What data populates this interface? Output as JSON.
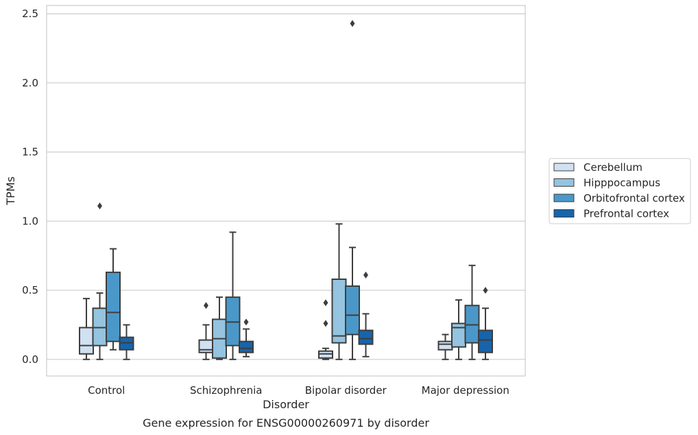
{
  "chart_data": {
    "type": "box",
    "title": "",
    "caption": "Gene expression for ENSG00000260971 by disorder",
    "xlabel": "Disorder",
    "ylabel": "TPMs",
    "ylim": [
      -0.12,
      2.56
    ],
    "yticks": [
      0.0,
      0.5,
      1.0,
      1.5,
      2.0,
      2.5
    ],
    "ytick_labels": [
      "0.0",
      "0.5",
      "1.0",
      "1.5",
      "2.0",
      "2.5"
    ],
    "grid": "horizontal",
    "legend_position": "right",
    "categories": [
      "Control",
      "Schizophrenia",
      "Bipolar disorder",
      "Major depression"
    ],
    "series": [
      {
        "name": "Cerebellum",
        "color": "#d0e1f2",
        "boxes": [
          {
            "whisker_low": 0.0,
            "q1": 0.04,
            "median": 0.1,
            "q3": 0.23,
            "whisker_high": 0.44,
            "outliers": []
          },
          {
            "whisker_low": 0.0,
            "q1": 0.05,
            "median": 0.07,
            "q3": 0.14,
            "whisker_high": 0.25,
            "outliers": [
              0.39
            ]
          },
          {
            "whisker_low": 0.0,
            "q1": 0.01,
            "median": 0.04,
            "q3": 0.06,
            "whisker_high": 0.08,
            "outliers": [
              0.26,
              0.41
            ]
          },
          {
            "whisker_low": 0.0,
            "q1": 0.07,
            "median": 0.11,
            "q3": 0.13,
            "whisker_high": 0.18,
            "outliers": []
          }
        ]
      },
      {
        "name": "Hipppocampus",
        "color": "#94c4df",
        "boxes": [
          {
            "whisker_low": 0.0,
            "q1": 0.1,
            "median": 0.23,
            "q3": 0.37,
            "whisker_high": 0.48,
            "outliers": [
              1.11
            ]
          },
          {
            "whisker_low": 0.0,
            "q1": 0.01,
            "median": 0.15,
            "q3": 0.29,
            "whisker_high": 0.45,
            "outliers": []
          },
          {
            "whisker_low": 0.0,
            "q1": 0.12,
            "median": 0.17,
            "q3": 0.58,
            "whisker_high": 0.98,
            "outliers": []
          },
          {
            "whisker_low": 0.0,
            "q1": 0.09,
            "median": 0.23,
            "q3": 0.26,
            "whisker_high": 0.43,
            "outliers": []
          }
        ]
      },
      {
        "name": "Orbitofrontal cortex",
        "color": "#4a98c9",
        "boxes": [
          {
            "whisker_low": 0.07,
            "q1": 0.13,
            "median": 0.34,
            "q3": 0.63,
            "whisker_high": 0.8,
            "outliers": []
          },
          {
            "whisker_low": 0.0,
            "q1": 0.1,
            "median": 0.27,
            "q3": 0.45,
            "whisker_high": 0.92,
            "outliers": []
          },
          {
            "whisker_low": 0.0,
            "q1": 0.18,
            "median": 0.32,
            "q3": 0.53,
            "whisker_high": 0.81,
            "outliers": [
              2.43
            ]
          },
          {
            "whisker_low": 0.0,
            "q1": 0.12,
            "median": 0.25,
            "q3": 0.39,
            "whisker_high": 0.68,
            "outliers": []
          }
        ]
      },
      {
        "name": "Prefrontal cortex",
        "color": "#1764ab",
        "boxes": [
          {
            "whisker_low": 0.0,
            "q1": 0.07,
            "median": 0.12,
            "q3": 0.16,
            "whisker_high": 0.25,
            "outliers": []
          },
          {
            "whisker_low": 0.02,
            "q1": 0.05,
            "median": 0.08,
            "q3": 0.13,
            "whisker_high": 0.22,
            "outliers": [
              0.27
            ]
          },
          {
            "whisker_low": 0.02,
            "q1": 0.11,
            "median": 0.15,
            "q3": 0.21,
            "whisker_high": 0.33,
            "outliers": [
              0.61
            ]
          },
          {
            "whisker_low": 0.0,
            "q1": 0.05,
            "median": 0.14,
            "q3": 0.21,
            "whisker_high": 0.37,
            "outliers": [
              0.5
            ]
          }
        ]
      }
    ]
  }
}
